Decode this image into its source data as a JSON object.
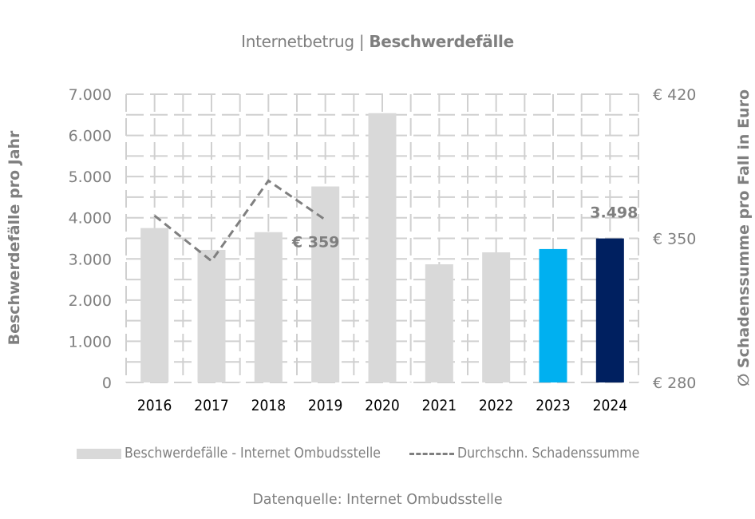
{
  "title": {
    "prefix": "Internetbetrug | ",
    "main": "Beschwerdefälle"
  },
  "source_note": "Datenquelle: Internet Ombudsstelle",
  "legend": {
    "bars_label": "Beschwerdefälle - Internet Ombudsstelle",
    "line_label": "Durchschn. Schadenssumme"
  },
  "colors": {
    "bar_default": "#d9d9d9",
    "bar_2023": "#00b0f0",
    "bar_2024": "#002060",
    "line": "#7f7f7f",
    "text": "#7f7f7f",
    "grid": "#d0d0d0"
  },
  "chart_data": {
    "type": "bar",
    "title": "Internetbetrug | Beschwerdefälle",
    "categories": [
      "2016",
      "2017",
      "2018",
      "2019",
      "2020",
      "2021",
      "2022",
      "2023",
      "2024"
    ],
    "series": [
      {
        "name": "Beschwerdefälle - Internet Ombudsstelle",
        "type": "bar",
        "axis": "left",
        "values": [
          3750,
          3220,
          3650,
          4760,
          6540,
          2870,
          3160,
          3240,
          3498
        ],
        "highlight": {
          "2023": "#00b0f0",
          "2024": "#002060"
        }
      },
      {
        "name": "Durchschn. Schadenssumme",
        "type": "line",
        "style": "dashed",
        "axis": "right",
        "values": [
          361,
          339,
          378,
          359,
          null,
          null,
          null,
          null,
          null
        ]
      }
    ],
    "data_labels": [
      {
        "series": "Beschwerdefälle - Internet Ombudsstelle",
        "category": "2024",
        "text": "3.498"
      },
      {
        "series": "Durchschn. Schadenssumme",
        "category": "2019",
        "text": "€ 359"
      }
    ],
    "ylabel": "Beschwerdefälle pro Jahr",
    "ylabel_right": "∅ Schadenssumme pro Fall in Euro",
    "ylim": [
      0,
      7000
    ],
    "ylim_right": [
      280,
      420
    ],
    "yticks": [
      "0",
      "1.000",
      "2.000",
      "3.000",
      "4.000",
      "5.000",
      "6.000",
      "7.000"
    ],
    "yticks_right": [
      "€ 280",
      "€ 350",
      "€ 420"
    ],
    "grid": true,
    "legend_position": "bottom"
  }
}
